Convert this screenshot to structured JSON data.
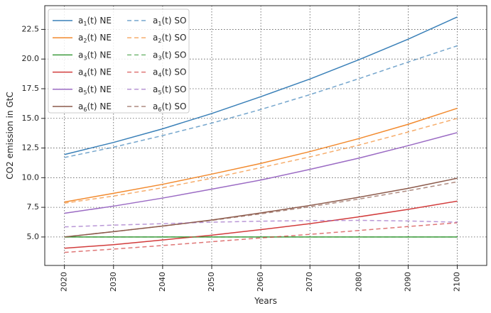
{
  "chart_data": {
    "type": "line",
    "title": "",
    "xlabel": "Years",
    "ylabel": "CO2 emission in GtC",
    "xlim": [
      2016,
      2106
    ],
    "ylim": [
      2.6,
      24.5
    ],
    "x_ticks": [
      2020,
      2030,
      2040,
      2050,
      2060,
      2070,
      2080,
      2090,
      2100
    ],
    "y_ticks": [
      5.0,
      7.5,
      10.0,
      12.5,
      15.0,
      17.5,
      20.0,
      22.5
    ],
    "x_tick_rotation": 90,
    "grid": true,
    "grid_style": "dotted",
    "legend": {
      "placement": "top-left",
      "columns": 2
    },
    "x": [
      2020,
      2030,
      2040,
      2050,
      2060,
      2070,
      2080,
      2090,
      2100
    ],
    "series": [
      {
        "name": "a1(t) NE",
        "label_base": "a",
        "label_sub": "1",
        "label_suffix": "(t) NE",
        "color": "#3a80b8",
        "dash": "solid",
        "values": [
          11.95,
          12.97,
          14.12,
          15.41,
          16.83,
          18.32,
          19.95,
          21.68,
          23.55
        ]
      },
      {
        "name": "a2(t) NE",
        "label_base": "a",
        "label_sub": "2",
        "label_suffix": "(t) NE",
        "color": "#f28a2e",
        "dash": "solid",
        "values": [
          7.95,
          8.68,
          9.44,
          10.3,
          11.2,
          12.2,
          13.3,
          14.5,
          15.85
        ]
      },
      {
        "name": "a3(t) NE",
        "label_base": "a",
        "label_sub": "3",
        "label_suffix": "(t) NE",
        "color": "#3d9b3d",
        "dash": "solid",
        "values": [
          5.0,
          5.0,
          5.0,
          5.0,
          5.0,
          5.0,
          5.0,
          5.0,
          5.0
        ]
      },
      {
        "name": "a4(t) NE",
        "label_base": "a",
        "label_sub": "4",
        "label_suffix": "(t) NE",
        "color": "#d23c3c",
        "dash": "solid",
        "values": [
          4.05,
          4.35,
          4.75,
          5.15,
          5.62,
          6.12,
          6.7,
          7.33,
          8.02
        ]
      },
      {
        "name": "a5(t) NE",
        "label_base": "a",
        "label_sub": "5",
        "label_suffix": "(t) NE",
        "color": "#9b6bc4",
        "dash": "solid",
        "values": [
          7.0,
          7.6,
          8.28,
          9.03,
          9.8,
          10.7,
          11.65,
          12.7,
          13.8
        ]
      },
      {
        "name": "a6(t) NE",
        "label_base": "a",
        "label_sub": "6",
        "label_suffix": "(t) NE",
        "color": "#8c5a4b",
        "dash": "solid",
        "values": [
          5.0,
          5.45,
          5.92,
          6.43,
          7.03,
          7.66,
          8.35,
          9.1,
          9.95
        ]
      },
      {
        "name": "a1(t) SO",
        "label_base": "a",
        "label_sub": "1",
        "label_suffix": "(t) SO",
        "color": "#3a80b8",
        "dash": "dashed",
        "values": [
          11.7,
          12.57,
          13.55,
          14.6,
          15.75,
          17.0,
          18.35,
          19.75,
          21.12
        ]
      },
      {
        "name": "a2(t) SO",
        "label_base": "a",
        "label_sub": "2",
        "label_suffix": "(t) SO",
        "color": "#f28a2e",
        "dash": "dashed",
        "values": [
          7.85,
          8.45,
          9.15,
          9.95,
          10.85,
          11.75,
          12.75,
          13.85,
          15.0
        ]
      },
      {
        "name": "a3(t) SO",
        "label_base": "a",
        "label_sub": "3",
        "label_suffix": "(t) SO",
        "color": "#3d9b3d",
        "dash": "dashed",
        "values": [
          5.0,
          5.0,
          5.0,
          5.0,
          5.0,
          5.0,
          5.0,
          5.0,
          5.0
        ]
      },
      {
        "name": "a4(t) SO",
        "label_base": "a",
        "label_sub": "4",
        "label_suffix": "(t) SO",
        "color": "#d23c3c",
        "dash": "dashed",
        "values": [
          3.7,
          3.98,
          4.28,
          4.6,
          4.92,
          5.22,
          5.55,
          5.88,
          6.2
        ]
      },
      {
        "name": "a5(t) SO",
        "label_base": "a",
        "label_sub": "5",
        "label_suffix": "(t) SO",
        "color": "#9b6bc4",
        "dash": "dashed",
        "values": [
          5.85,
          6.0,
          6.12,
          6.25,
          6.33,
          6.38,
          6.4,
          6.35,
          6.25
        ]
      },
      {
        "name": "a6(t) SO",
        "label_base": "a",
        "label_sub": "6",
        "label_suffix": "(t) SO",
        "color": "#8c5a4b",
        "dash": "dashed",
        "values": [
          5.0,
          5.45,
          5.92,
          6.4,
          6.95,
          7.55,
          8.2,
          8.9,
          9.65
        ]
      }
    ]
  }
}
